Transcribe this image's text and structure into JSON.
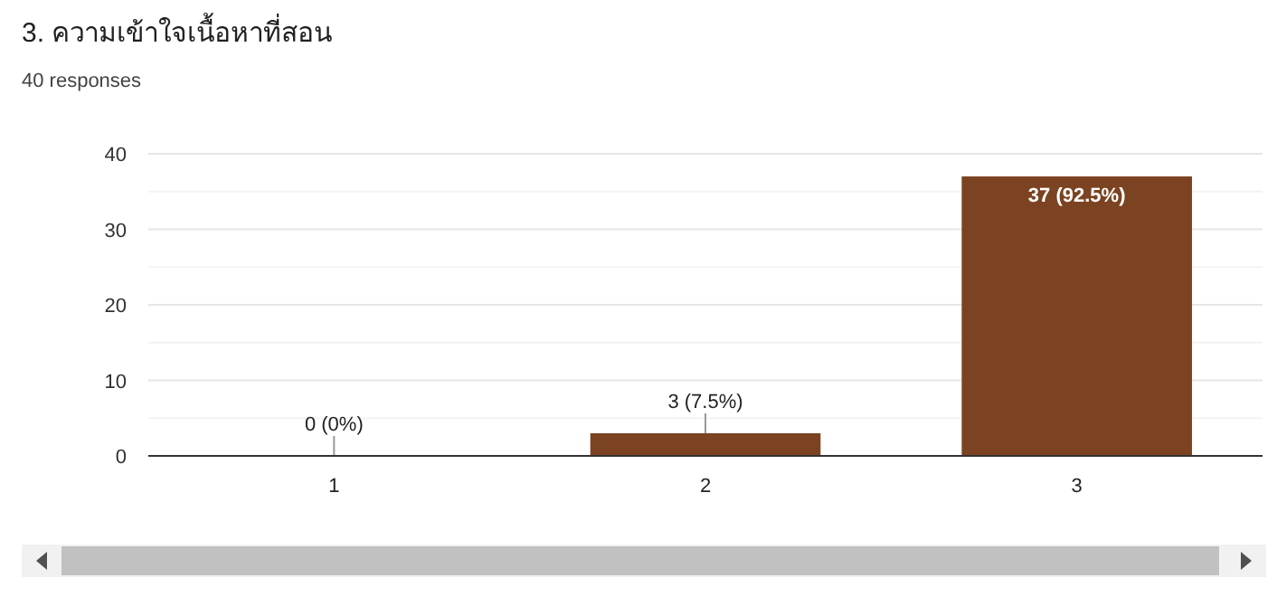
{
  "chart_data": {
    "type": "bar",
    "title": "3. ความเข้าใจเนื้อหาที่สอน",
    "subtitle": "40 responses",
    "categories": [
      "1",
      "2",
      "3"
    ],
    "values": [
      0,
      3,
      37
    ],
    "value_labels": [
      "0 (0%)",
      "3 (7.5%)",
      "37 (92.5%)"
    ],
    "color": "#7b4321",
    "ylim": [
      0,
      40
    ],
    "yticks": [
      0,
      10,
      20,
      30,
      40
    ],
    "grid": "y"
  }
}
